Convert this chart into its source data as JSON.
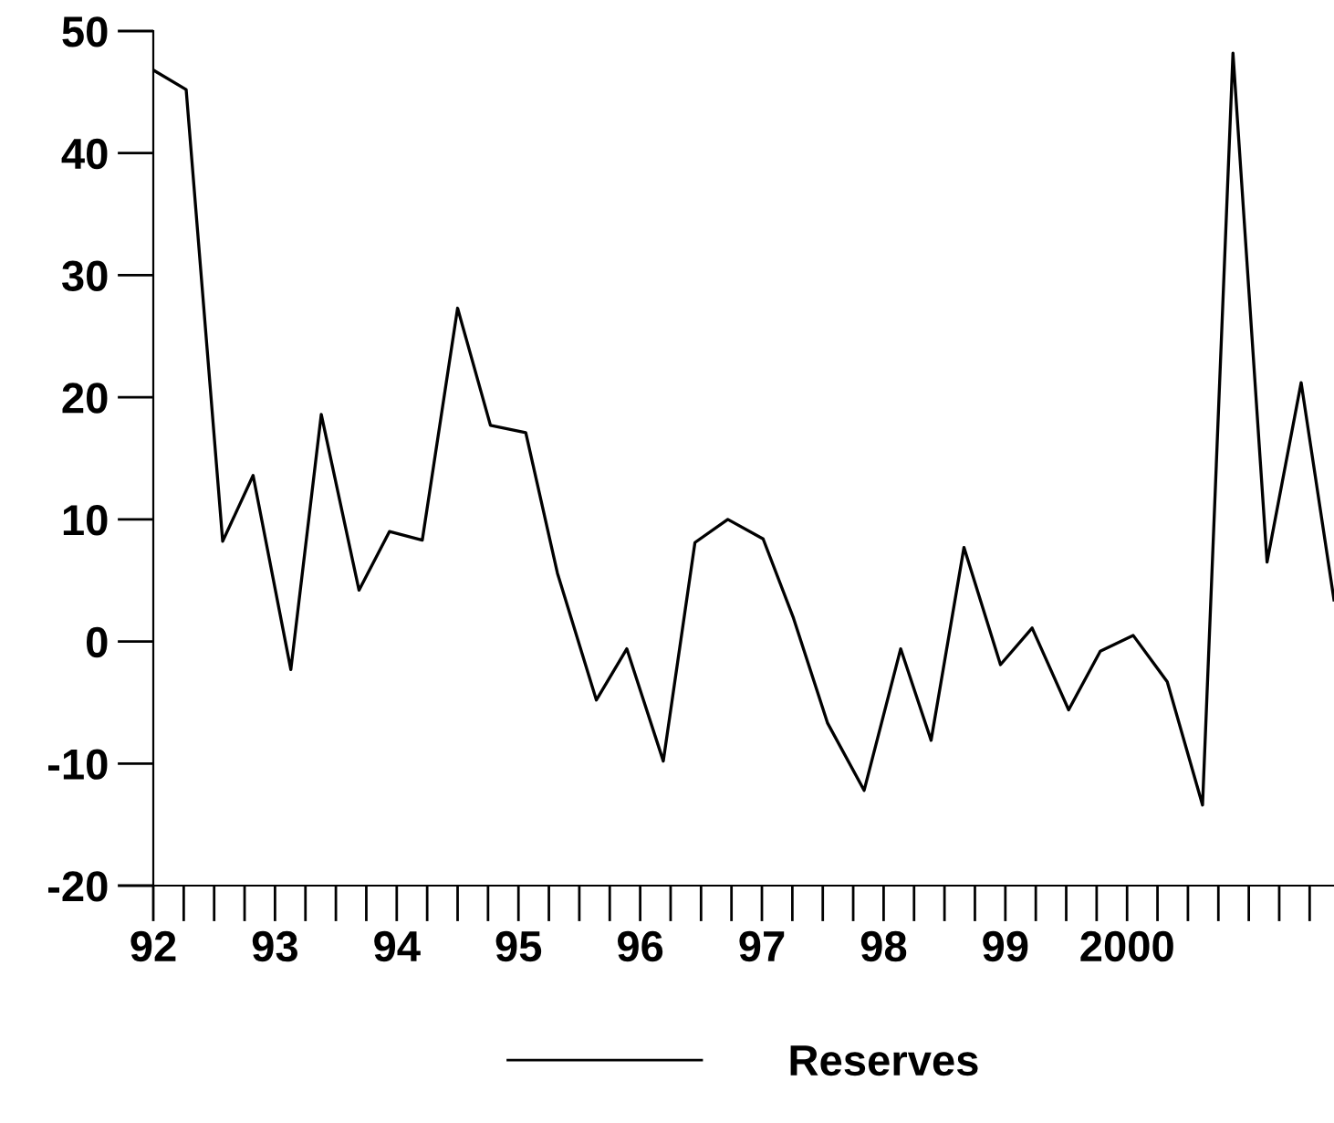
{
  "chart_data": {
    "type": "line",
    "x": [
      1992.0,
      1992.27,
      1992.57,
      1992.82,
      1993.13,
      1993.38,
      1993.69,
      1993.94,
      1994.21,
      1994.5,
      1994.77,
      1995.06,
      1995.32,
      1995.64,
      1995.89,
      1996.19,
      1996.45,
      1996.72,
      1997.01,
      1997.26,
      1997.54,
      1997.84,
      1998.14,
      1998.39,
      1998.66,
      1998.96,
      1999.22,
      1999.52,
      1999.78,
      2000.05,
      2000.33,
      2000.62,
      2000.87,
      2001.15,
      2001.43,
      2001.7
    ],
    "series": [
      {
        "name": "Reserves",
        "color": "#000000",
        "values": [
          46.8,
          45.2,
          8.2,
          13.6,
          -2.3,
          18.6,
          4.2,
          9.0,
          8.3,
          27.3,
          17.7,
          17.1,
          5.6,
          -4.8,
          -0.6,
          -9.8,
          8.1,
          10.0,
          8.4,
          1.9,
          -6.7,
          -12.2,
          -0.6,
          -8.1,
          7.7,
          -1.9,
          1.1,
          -5.6,
          -0.8,
          0.5,
          -3.3,
          -13.4,
          48.2,
          6.5,
          21.2,
          3.4
        ]
      }
    ],
    "xlim": [
      1992,
      2001.7
    ],
    "xticks": [
      {
        "value": 1992,
        "label": "92"
      },
      {
        "value": 1993,
        "label": "93"
      },
      {
        "value": 1994,
        "label": "94"
      },
      {
        "value": 1995,
        "label": "95"
      },
      {
        "value": 1996,
        "label": "96"
      },
      {
        "value": 1997,
        "label": "97"
      },
      {
        "value": 1998,
        "label": "98"
      },
      {
        "value": 1999,
        "label": "99"
      },
      {
        "value": 2000,
        "label": "2000"
      }
    ],
    "ylim": [
      -20,
      50
    ],
    "yticks": [
      -20,
      -10,
      0,
      10,
      20,
      30,
      40,
      50
    ],
    "grid": false,
    "legend": "bottom",
    "marker": "none",
    "line_style": "solid"
  }
}
